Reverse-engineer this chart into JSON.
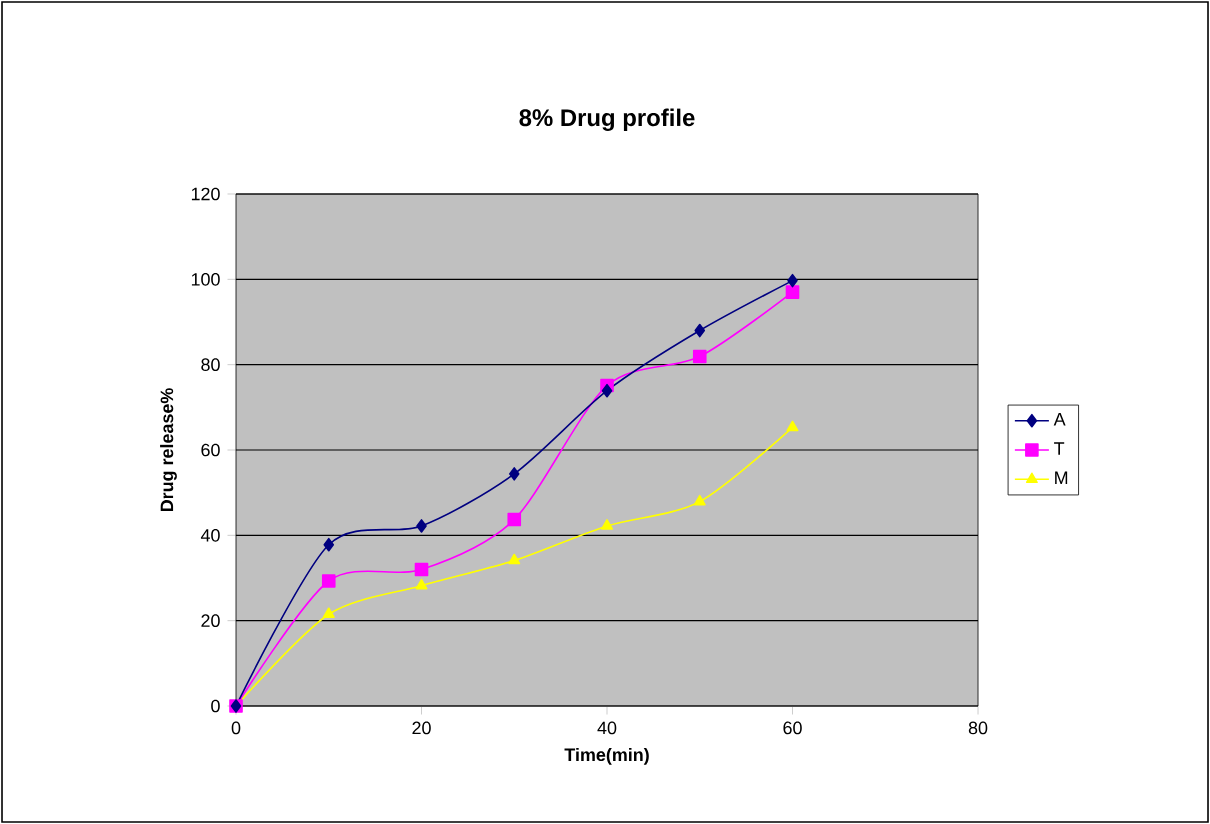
{
  "chart_data": {
    "type": "line",
    "title": "8% Drug profile",
    "xlabel": "Time(min)",
    "ylabel": "Drug release%",
    "x": [
      0,
      10,
      20,
      30,
      40,
      50,
      60
    ],
    "series": [
      {
        "name": "A",
        "color": "#000080",
        "marker": "diamond",
        "values": [
          0,
          37.8,
          42.2,
          54.4,
          73.9,
          88,
          99.7
        ]
      },
      {
        "name": "T",
        "color": "#ff00ff",
        "marker": "square",
        "values": [
          0,
          29.3,
          32,
          43.7,
          75.1,
          81.9,
          97
        ]
      },
      {
        "name": "M",
        "color": "#ffff00",
        "marker": "triangle",
        "values": [
          0,
          21.5,
          28.2,
          34.1,
          42.2,
          47.9,
          65.3
        ]
      }
    ],
    "xlim": [
      0,
      80
    ],
    "xticks": [
      0,
      20,
      40,
      60,
      80
    ],
    "ylim": [
      0,
      120
    ],
    "yticks": [
      0,
      20,
      40,
      60,
      80,
      100,
      120
    ],
    "grid": "y",
    "legend": "right",
    "line_style": "solid"
  }
}
